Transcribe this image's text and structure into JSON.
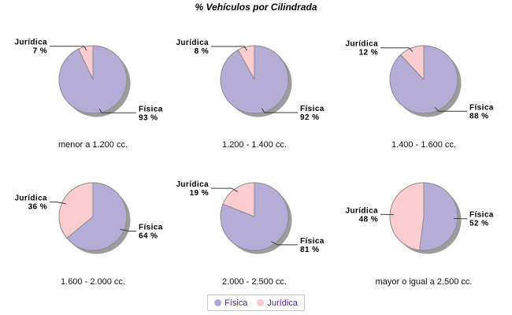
{
  "title": "% Vehículos por Cilindrada",
  "legend": {
    "items": [
      {
        "label": "Física",
        "color": "#b2a7d4",
        "key": "fisica"
      },
      {
        "label": "Jurídica",
        "color": "#fac8cd",
        "key": "juridica"
      }
    ]
  },
  "chart_data": {
    "type": "pie",
    "title": "% Vehículos por Cilindrada",
    "layout": "2 rows x 3 columns of pies, shared legend bottom-center",
    "legend_position": "bottom-center",
    "percent_format": "{value} %",
    "series_labels": [
      "Física",
      "Jurídica"
    ],
    "colors": {
      "fisica": "#b6acd8",
      "juridica": "#fbcdd1"
    },
    "shadow_color": "#9c9c9c",
    "slice_stroke": "#8c8c8c",
    "charts": [
      {
        "category": "menor a 1.200 cc.",
        "fisica_pct": 93,
        "juridica_pct": 7
      },
      {
        "category": "1.200 - 1.400 cc.",
        "fisica_pct": 92,
        "juridica_pct": 8
      },
      {
        "category": "1.400 - 1.600 cc.",
        "fisica_pct": 88,
        "juridica_pct": 12
      },
      {
        "category": "1.600 - 2.000 cc.",
        "fisica_pct": 64,
        "juridica_pct": 36
      },
      {
        "category": "2.000 - 2.500 cc.",
        "fisica_pct": 81,
        "juridica_pct": 19
      },
      {
        "category": "mayor o igual a 2.500 cc.",
        "fisica_pct": 52,
        "juridica_pct": 48
      }
    ]
  }
}
